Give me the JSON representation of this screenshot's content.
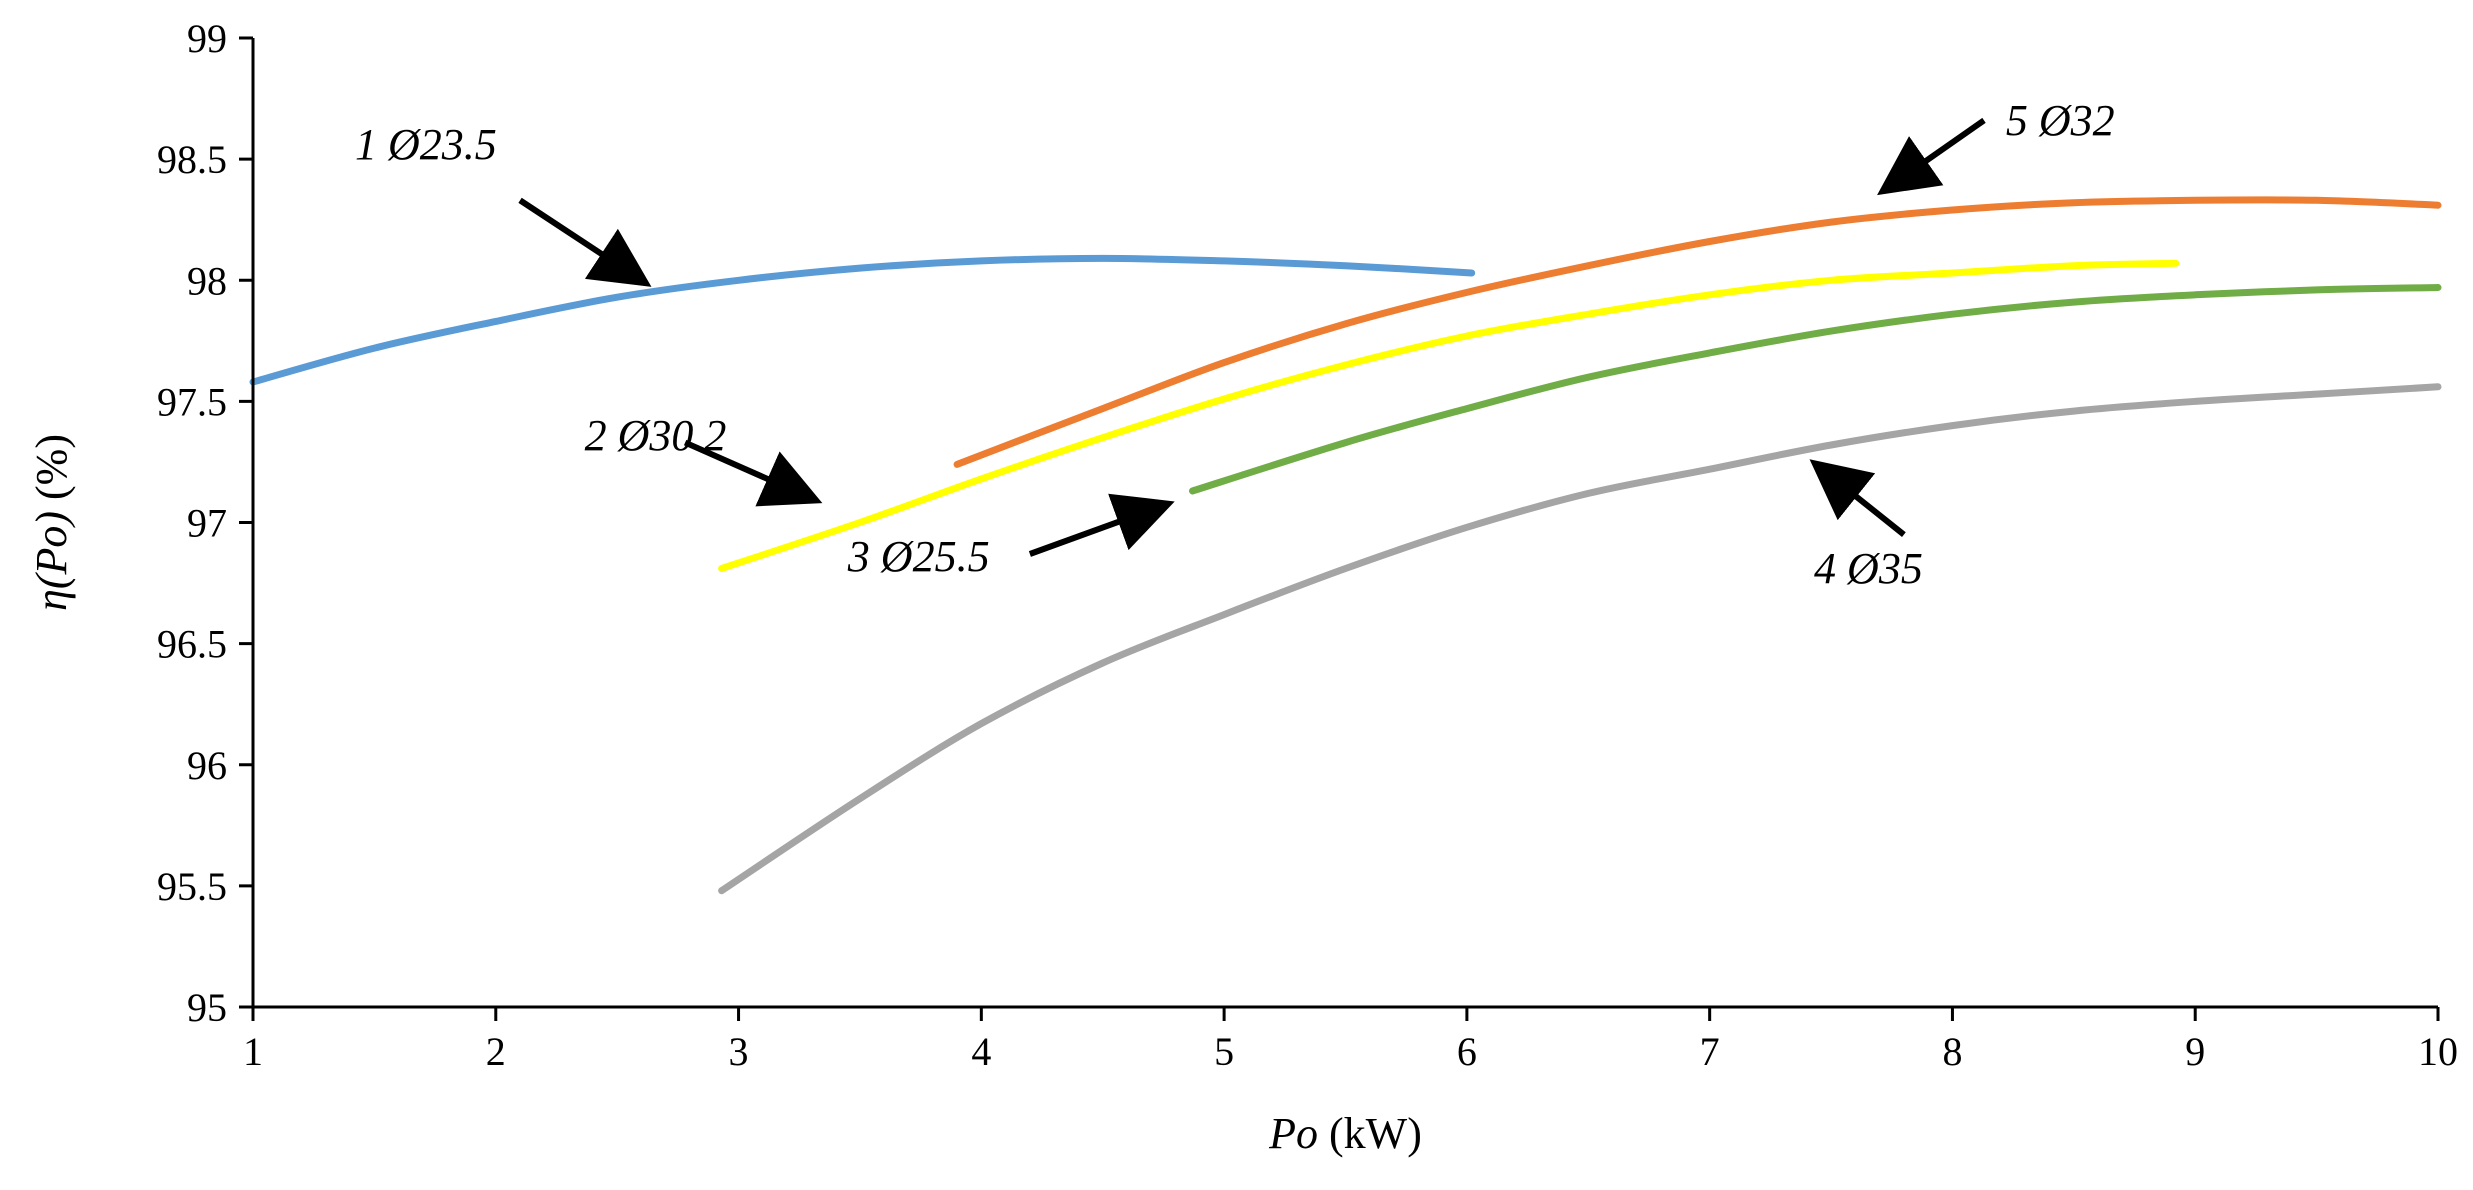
{
  "chart_data": {
    "type": "line",
    "xlabel": {
      "italic": "Po",
      "normal": " (kW)"
    },
    "ylabel": {
      "italic": "η(Po)",
      "normal": " (%)"
    },
    "xlim": [
      1,
      10
    ],
    "ylim": [
      95,
      99
    ],
    "xticks": [
      "1",
      "2",
      "3",
      "4",
      "5",
      "6",
      "7",
      "8",
      "9",
      "10"
    ],
    "yticks": [
      "95",
      "95.5",
      "96",
      "96.5",
      "97",
      "97.5",
      "98",
      "98.5",
      "99"
    ],
    "grid": false,
    "series": [
      {
        "color": "#5b9bd5",
        "x": [
          1,
          1.5,
          2,
          2.5,
          3,
          3.5,
          4,
          4.5,
          5,
          5.5,
          6.02
        ],
        "y": [
          97.58,
          97.72,
          97.83,
          97.93,
          98.0,
          98.05,
          98.08,
          98.09,
          98.08,
          98.06,
          98.03
        ]
      },
      {
        "color": "#ffff00",
        "x": [
          2.93,
          3.5,
          4,
          4.5,
          5,
          5.5,
          6,
          6.5,
          7,
          7.5,
          8,
          8.5,
          8.92
        ],
        "y": [
          96.81,
          97.0,
          97.18,
          97.35,
          97.51,
          97.65,
          97.77,
          97.86,
          97.94,
          98.0,
          98.03,
          98.06,
          98.07
        ]
      },
      {
        "color": "#70ad47",
        "x": [
          4.87,
          5.5,
          6,
          6.5,
          7,
          7.5,
          8,
          8.5,
          9,
          9.5,
          10
        ],
        "y": [
          97.13,
          97.33,
          97.47,
          97.6,
          97.7,
          97.79,
          97.86,
          97.91,
          97.94,
          97.96,
          97.97
        ]
      },
      {
        "color": "#a5a5a5",
        "x": [
          2.93,
          3.5,
          4,
          4.5,
          5,
          5.5,
          6,
          6.5,
          7,
          7.5,
          8,
          8.5,
          9,
          9.5,
          10
        ],
        "y": [
          95.48,
          95.86,
          96.17,
          96.42,
          96.62,
          96.81,
          96.98,
          97.12,
          97.22,
          97.32,
          97.4,
          97.46,
          97.5,
          97.53,
          97.56
        ]
      },
      {
        "color": "#ed7d31",
        "x": [
          3.9,
          4.5,
          5,
          5.5,
          6,
          6.5,
          7,
          7.5,
          8,
          8.5,
          9,
          9.5,
          10
        ],
        "y": [
          97.24,
          97.47,
          97.66,
          97.82,
          97.95,
          98.06,
          98.16,
          98.24,
          98.29,
          98.32,
          98.33,
          98.33,
          98.31
        ]
      }
    ],
    "annotations": [
      {
        "text": "1 Ø23.5",
        "x": 1.42,
        "y": 98.5,
        "anchor": "start",
        "arrow_from": [
          2.1,
          98.33
        ],
        "arrow_to": [
          2.6,
          98.0
        ]
      },
      {
        "text": "2 Ø30.2",
        "x": 2.95,
        "y": 97.3,
        "anchor": "end",
        "arrow_from": [
          2.78,
          97.33
        ],
        "arrow_to": [
          3.3,
          97.1
        ]
      },
      {
        "text": "3 Ø25.5",
        "x": 3.45,
        "y": 96.8,
        "anchor": "start",
        "arrow_from": [
          4.2,
          96.87
        ],
        "arrow_to": [
          4.75,
          97.07
        ]
      },
      {
        "text": "4 Ø35",
        "x": 7.43,
        "y": 96.75,
        "anchor": "start",
        "arrow_from": [
          7.8,
          96.95
        ],
        "arrow_to": [
          7.45,
          97.23
        ]
      },
      {
        "text": "5 Ø32",
        "x": 8.22,
        "y": 98.6,
        "anchor": "start",
        "arrow_from": [
          8.13,
          98.66
        ],
        "arrow_to": [
          7.73,
          98.38
        ]
      }
    ]
  }
}
